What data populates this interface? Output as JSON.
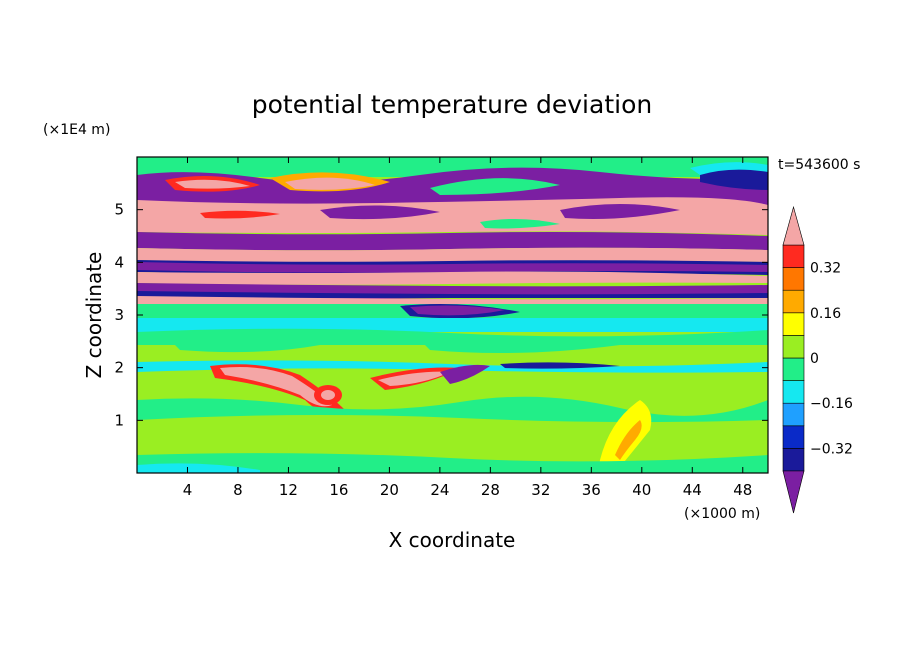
{
  "chart_data": {
    "type": "heatmap",
    "title": "potential temperature deviation",
    "xlabel": "X coordinate",
    "ylabel": "Z coordinate",
    "x_unit": "(×1000 m)",
    "y_unit": "(×1E4 m)",
    "time_label": "t=543600 s",
    "xlim": [
      0,
      50
    ],
    "ylim": [
      0,
      6
    ],
    "x_ticks": [
      "4",
      "8",
      "12",
      "16",
      "20",
      "24",
      "28",
      "32",
      "36",
      "40",
      "44",
      "48"
    ],
    "y_ticks": [
      "1",
      "2",
      "3",
      "4",
      "5"
    ],
    "colorbar": {
      "levels": [
        -0.4,
        -0.32,
        -0.24,
        -0.16,
        -0.08,
        0,
        0.08,
        0.16,
        0.24,
        0.32,
        0.4
      ],
      "tick_labels": [
        "0.32",
        "0.16",
        "0",
        "−0.16",
        "−0.32"
      ],
      "tick_values": [
        0.32,
        0.16,
        0,
        -0.16,
        -0.32
      ],
      "colors": [
        "#7b1fa2",
        "#1a1a9a",
        "#0a2ac8",
        "#1fa0ff",
        "#15e8f0",
        "#22ee88",
        "#9aee22",
        "#ffff00",
        "#ffaa00",
        "#ff7700",
        "#ff2a20",
        "#f4a6a6"
      ],
      "extend": "both"
    },
    "layers": [
      {
        "z_range": [
          5.6,
          6.0
        ],
        "level": "green/pink/purple mix"
      },
      {
        "z_range": [
          5.0,
          5.6
        ],
        "level": "purple (< -0.4)"
      },
      {
        "z_range": [
          4.6,
          5.0
        ],
        "level": "pink (> 0.4)"
      },
      {
        "z_range": [
          4.3,
          4.6
        ],
        "level": "purple"
      },
      {
        "z_range": [
          3.9,
          4.3
        ],
        "level": "pink"
      },
      {
        "z_range": [
          3.6,
          3.9
        ],
        "level": "purple/pink bands"
      },
      {
        "z_range": [
          3.0,
          3.5
        ],
        "level": "cyan/green"
      },
      {
        "z_range": [
          2.1,
          3.0
        ],
        "level": "green (0 to 0.08)"
      },
      {
        "z_range": [
          1.3,
          2.1
        ],
        "level": "mixed with warm anomalies near x=14-16, x=22-26"
      },
      {
        "z_range": [
          0.0,
          1.3
        ],
        "level": "green/lime; warm anomaly near x=38"
      }
    ]
  }
}
